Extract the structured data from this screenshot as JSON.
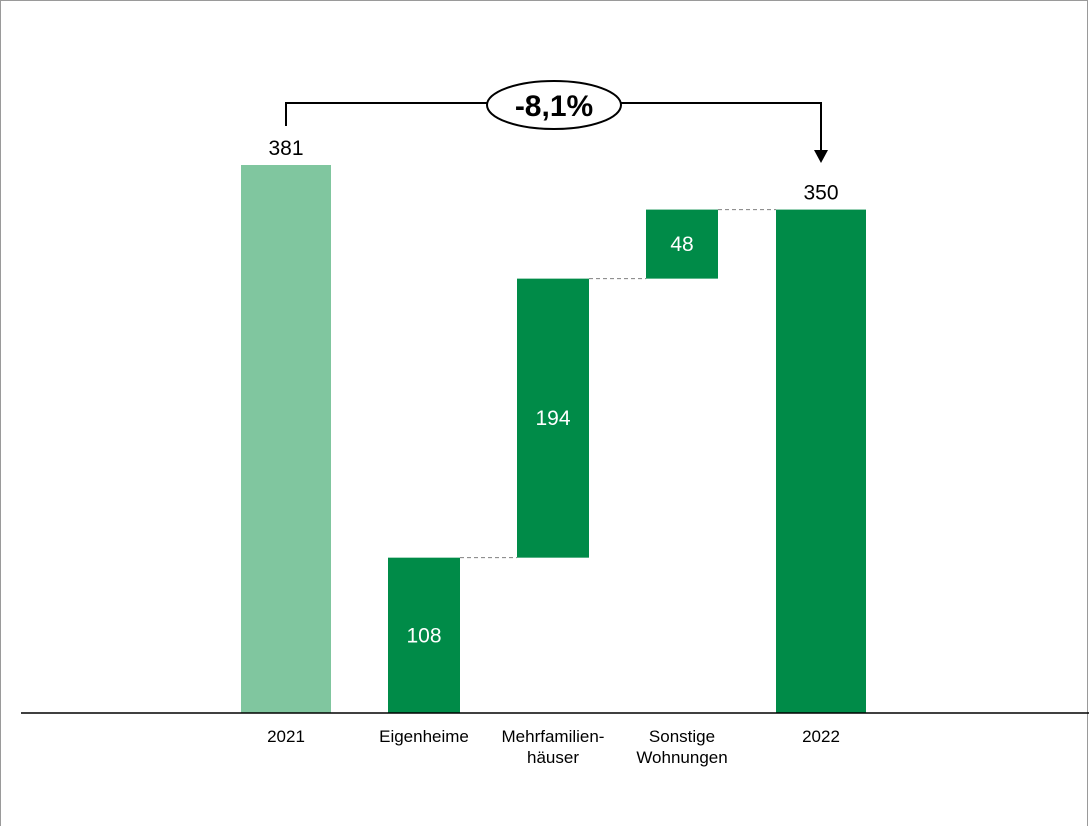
{
  "chart_data": {
    "type": "bar",
    "subtype": "waterfall",
    "categories": [
      [
        "2021"
      ],
      [
        "Eigenheime"
      ],
      [
        "Mehrfamilien-",
        "häuser"
      ],
      [
        "Sonstige",
        "Wohnungen"
      ],
      [
        "2022"
      ]
    ],
    "values": [
      381,
      108,
      194,
      48,
      350
    ],
    "value_labels": [
      "381",
      "108",
      "194",
      "48",
      "350"
    ],
    "roles": [
      "total",
      "increment",
      "increment",
      "increment",
      "total"
    ],
    "change_label": "-8,1%",
    "title": "",
    "xlabel": "",
    "ylabel": "",
    "ylim": [
      0,
      381
    ],
    "grid": false,
    "legend": "none",
    "colors": {
      "previous_total": "#80c69f",
      "component": "#008b48",
      "connector": "#808080",
      "axis": "#000000"
    }
  }
}
